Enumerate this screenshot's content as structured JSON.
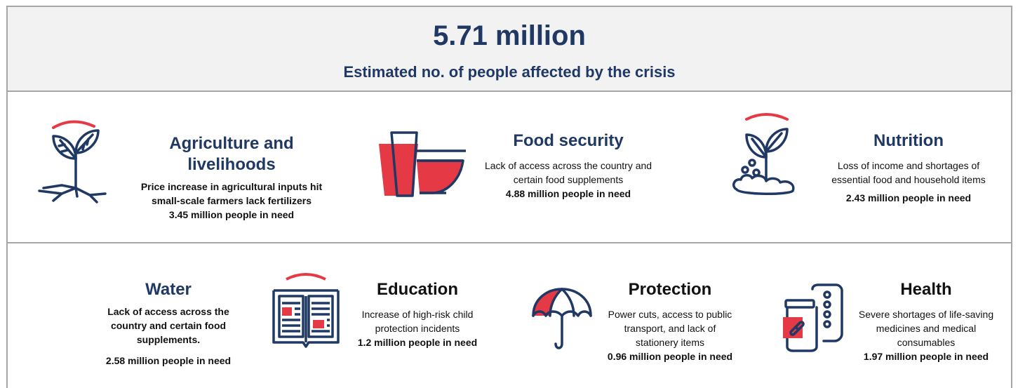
{
  "header": {
    "total": "5.71 million",
    "subtitle": "Estimated no. of people affected by the crisis"
  },
  "colors": {
    "navy": "#1f3864",
    "accent": "#e63946",
    "border": "#a6a6a6",
    "header_bg": "#f2f2f2"
  },
  "sectors": [
    {
      "title_line1": "Agriculture and",
      "title_line2": "livelihoods",
      "desc_line1": "Price increase in agricultural inputs hit",
      "desc_line2": "small-scale farmers lack fertilizers",
      "need": "3.45 million people in need",
      "icon": "plant-icon"
    },
    {
      "title": "Food security",
      "desc_line1": "Lack of access across the country and",
      "desc_line2": "certain food supplements",
      "need": "4.88 million people in need",
      "icon": "cup-and-bowl-icon"
    },
    {
      "title": "Nutrition",
      "desc_line1": "Loss of income and shortages of",
      "desc_line2": "essential food and household items",
      "need": "2.43 million people in need",
      "icon": "sprout-icon"
    },
    {
      "title": "Water",
      "desc_line1": "Lack of access across the",
      "desc_line2": "country and certain food",
      "desc_line3": "supplements.",
      "need": "2.58 million people in need"
    },
    {
      "title": "Education",
      "desc_line1": "Increase of high-risk child",
      "desc_line2": "protection incidents",
      "need": "1.2 million people in need",
      "icon": "book-icon"
    },
    {
      "title": "Protection",
      "desc_line1": "Power cuts, access to public",
      "desc_line2": "transport, and lack of",
      "desc_line3": "stationery items",
      "need": "0.96 million people in need",
      "icon": "umbrella-icon"
    },
    {
      "title": "Health",
      "desc_line1": "Severe shortages of life-saving",
      "desc_line2": "medicines and medical",
      "desc_line3": "consumables",
      "need": "1.97 million people in need",
      "icon": "medicine-icon"
    }
  ]
}
